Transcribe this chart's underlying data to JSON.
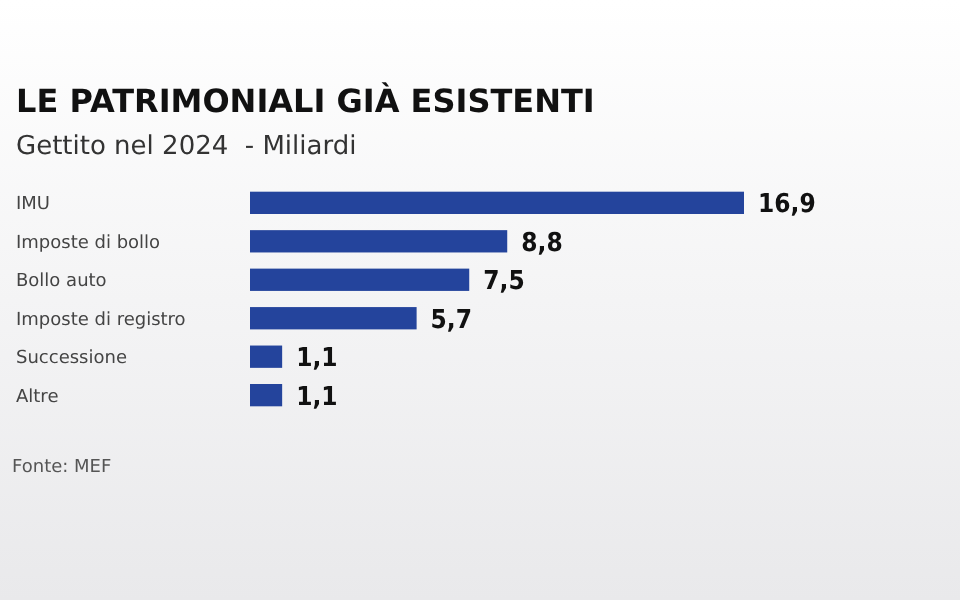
{
  "chart_data": {
    "type": "bar",
    "orientation": "horizontal",
    "title": "LE PATRIMONIALI GIÀ ESISTENTI",
    "subtitle": "Gettito nel 2024  - Miliardi",
    "categories": [
      "IMU",
      "Imposte di bollo",
      "Bollo auto",
      "Imposte di registro",
      "Successione",
      "Altre"
    ],
    "values": [
      16.9,
      8.8,
      7.5,
      5.7,
      1.1,
      1.1
    ],
    "color": "#24449c",
    "value_labels": [
      "16,9",
      "8,8",
      "7,5",
      "5,7",
      "1,1",
      "1,1"
    ],
    "annotations": [
      "Fonte: MEF"
    ]
  }
}
